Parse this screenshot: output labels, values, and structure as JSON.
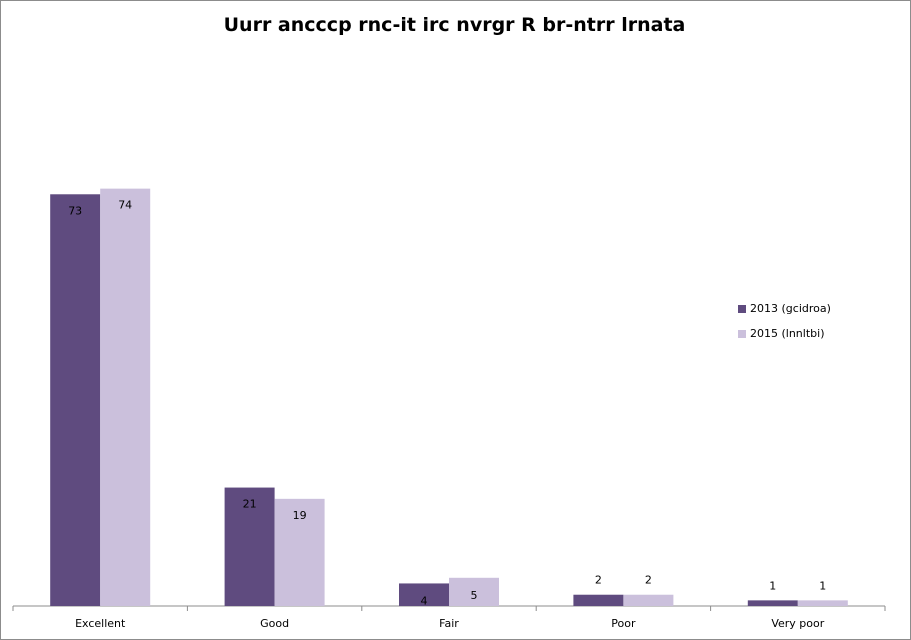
{
  "chart_data": {
    "type": "bar",
    "title": "Uurr ancccp rnc-it irc nvrgr R br-ntrr lrnata",
    "categories": [
      "Excellent",
      "Good",
      "Fair",
      "Poor",
      "Very poor"
    ],
    "series": [
      {
        "name": "2013 (gcidroa)",
        "values": [
          73,
          21,
          4,
          2,
          1
        ],
        "color": "#5f4b7f"
      },
      {
        "name": "2015 (lnnltbi)",
        "values": [
          74,
          19,
          5,
          2,
          1
        ],
        "color": "#cbc0dc"
      }
    ],
    "ylim": [
      0,
      100
    ],
    "grid": false,
    "legend_position": "right"
  }
}
